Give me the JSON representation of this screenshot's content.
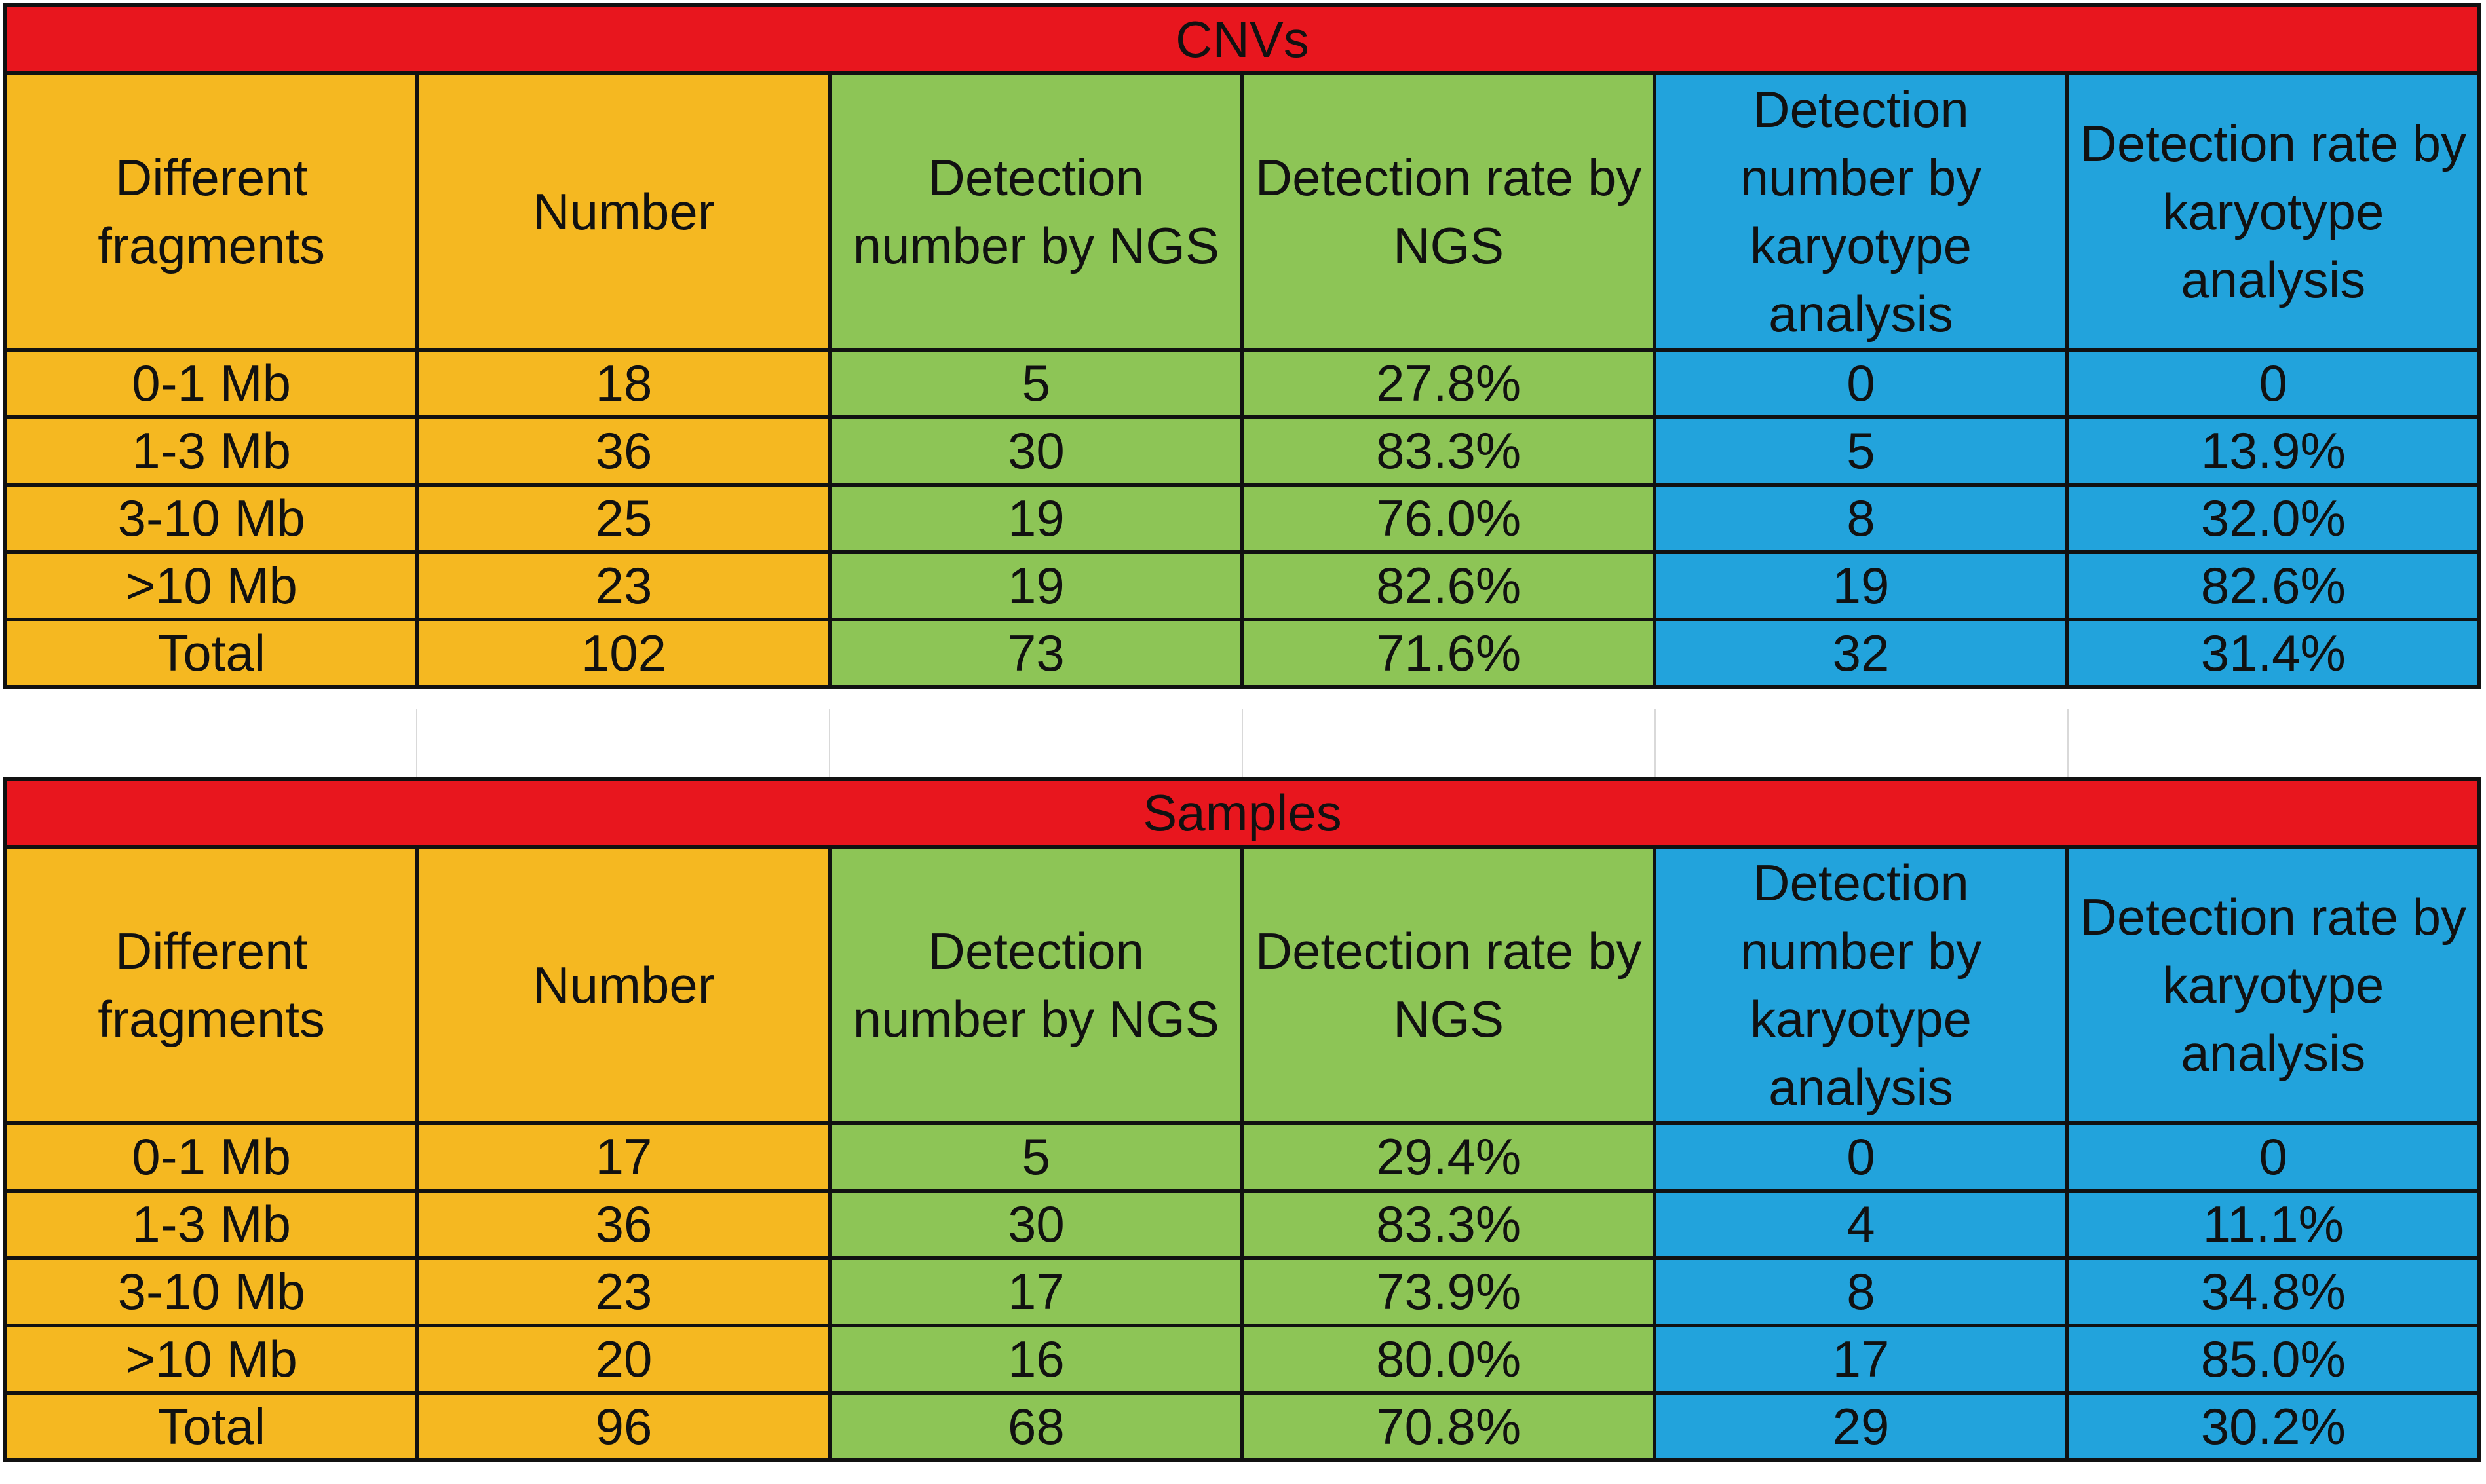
{
  "chart_data": {
    "type": "table",
    "colors": {
      "title_bar": "#E8161E",
      "fragments_columns": "#F5B821",
      "ngs_columns": "#8DC556",
      "karyotype_columns": "#22A3DC"
    },
    "headers": [
      "Different fragments",
      "Number",
      "Detection number by NGS",
      "Detection rate by NGS",
      "Detection number by karyotype analysis",
      "Detection rate by karyotype analysis"
    ],
    "tables": [
      {
        "title": "CNVs",
        "rows": [
          [
            "0-1 Mb",
            "18",
            "5",
            "27.8%",
            "0",
            "0"
          ],
          [
            "1-3 Mb",
            "36",
            "30",
            "83.3%",
            "5",
            "13.9%"
          ],
          [
            "3-10 Mb",
            "25",
            "19",
            "76.0%",
            "8",
            "32.0%"
          ],
          [
            ">10 Mb",
            "23",
            "19",
            "82.6%",
            "19",
            "82.6%"
          ],
          [
            "Total",
            "102",
            "73",
            "71.6%",
            "32",
            "31.4%"
          ]
        ]
      },
      {
        "title": "Samples",
        "rows": [
          [
            "0-1 Mb",
            "17",
            "5",
            "29.4%",
            "0",
            "0"
          ],
          [
            "1-3 Mb",
            "36",
            "30",
            "83.3%",
            "4",
            "11.1%"
          ],
          [
            "3-10 Mb",
            "23",
            "17",
            "73.9%",
            "8",
            "34.8%"
          ],
          [
            ">10 Mb",
            "20",
            "16",
            "80.0%",
            "17",
            "85.0%"
          ],
          [
            "Total",
            "96",
            "68",
            "70.8%",
            "29",
            "30.2%"
          ]
        ]
      }
    ]
  }
}
